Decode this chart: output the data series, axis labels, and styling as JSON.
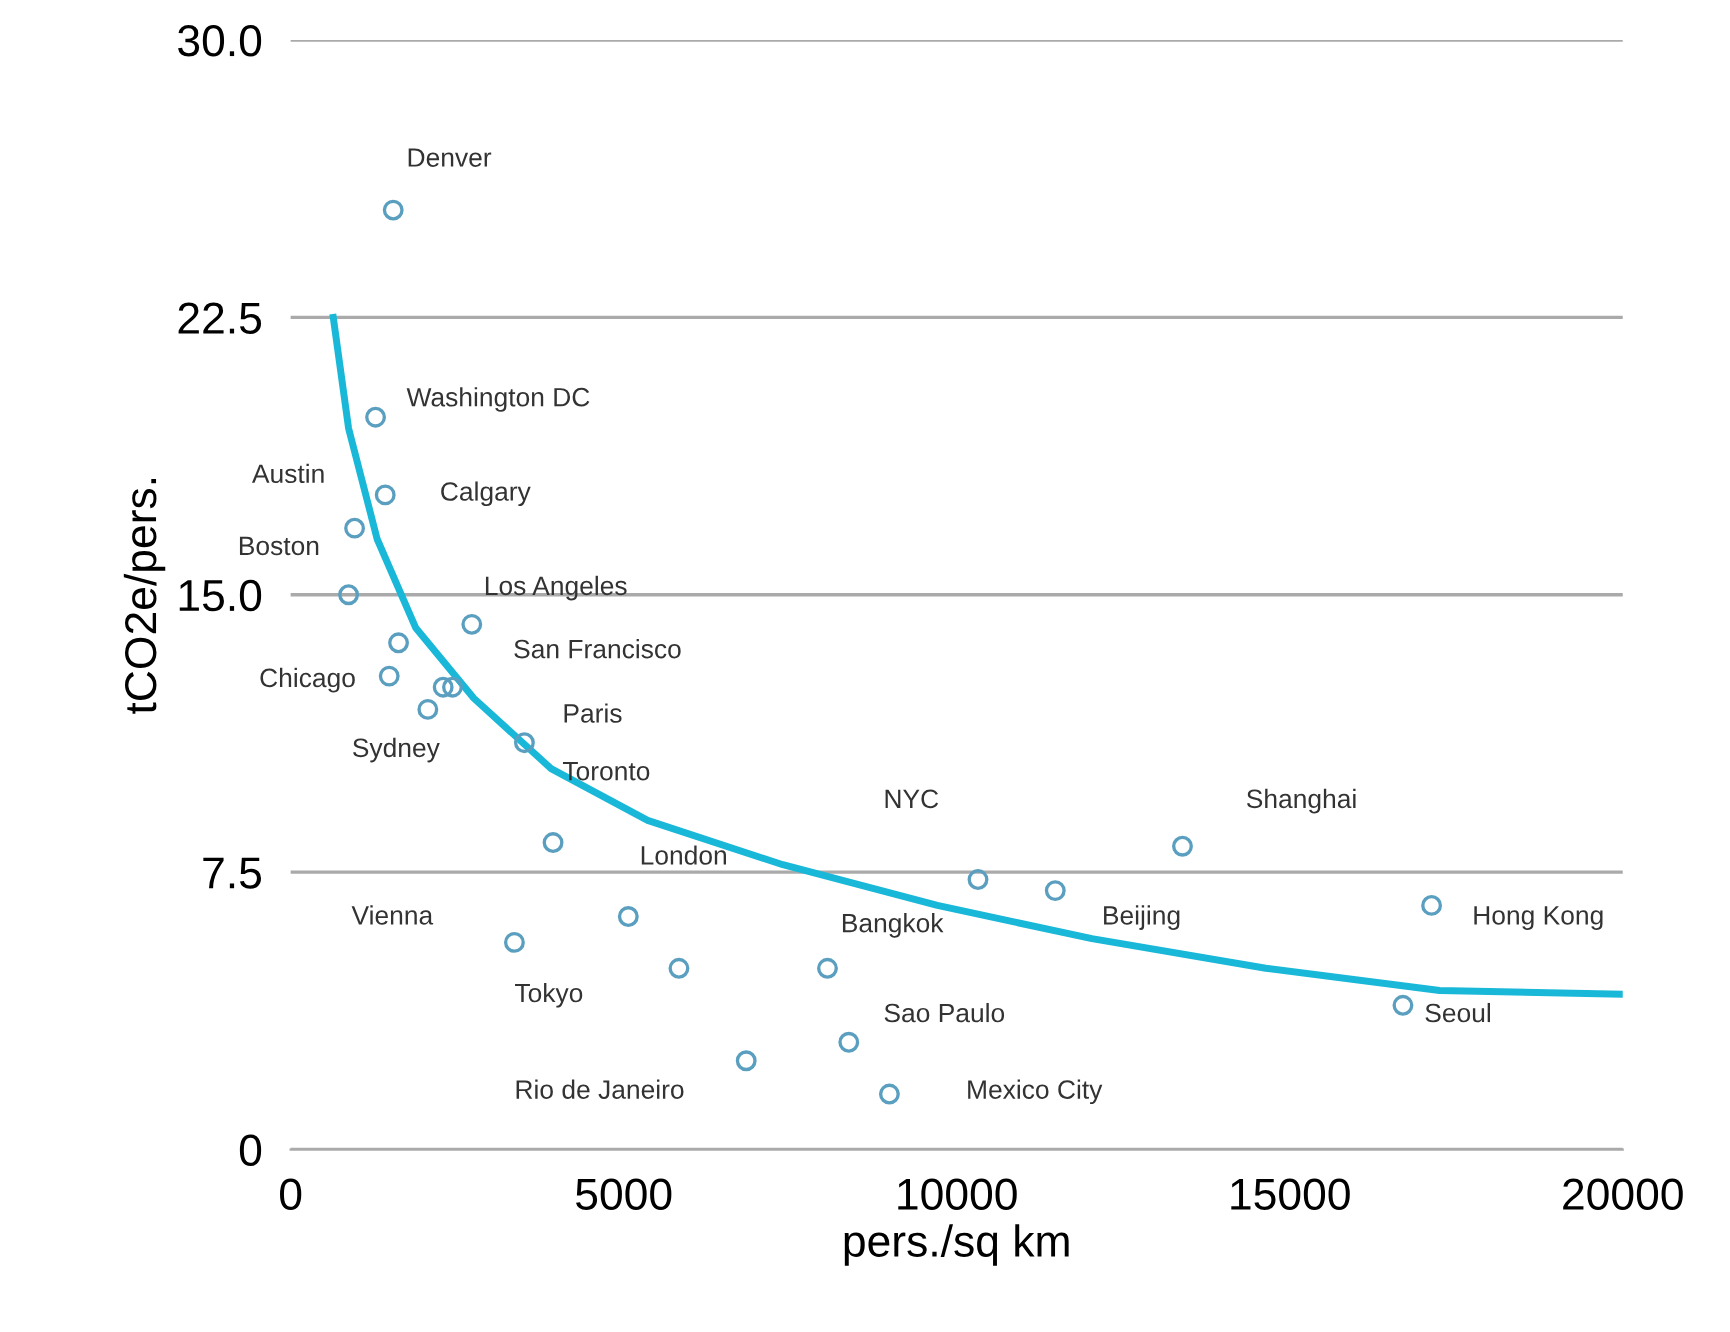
{
  "chart_data": {
    "type": "scatter",
    "xlabel": "pers./sq km",
    "ylabel": "tCO2e/pers.",
    "xlim": [
      0,
      20000
    ],
    "ylim": [
      0,
      30
    ],
    "xticks": [
      0,
      5000,
      10000,
      15000,
      20000
    ],
    "yticks": [
      {
        "value": 0,
        "label": "0"
      },
      {
        "value": 7.5,
        "label": "7.5"
      },
      {
        "value": 15,
        "label": "15.0"
      },
      {
        "value": 22.5,
        "label": "22.5"
      },
      {
        "value": 30,
        "label": "30.0"
      }
    ],
    "grid": "y",
    "marker": "circle",
    "series": [
      {
        "color": "#5a9fbf",
        "x": [
          1540,
          1275,
          1420,
          960,
          870,
          2720,
          1620,
          1480,
          2290,
          2430,
          2060,
          3510,
          3940,
          10320,
          11480,
          13390,
          17130,
          16700,
          3360,
          5070,
          5830,
          8060,
          8380,
          6840,
          8990
        ],
        "values": [
          25.4,
          19.8,
          17.7,
          16.8,
          15.0,
          14.2,
          13.7,
          12.8,
          12.5,
          12.5,
          11.9,
          11.0,
          8.3,
          7.3,
          7.0,
          8.2,
          6.6,
          3.9,
          5.6,
          6.3,
          4.9,
          4.9,
          2.9,
          2.4,
          1.5
        ]
      },
      {
        "type": "line",
        "color": "#1ab8d8",
        "marker": "none",
        "x": [
          640,
          870,
          1300,
          1880,
          2750,
          3910,
          5360,
          7390,
          9710,
          12030,
          14640,
          17250,
          20000
        ],
        "values": [
          22.5,
          19.5,
          16.5,
          14.1,
          12.2,
          10.3,
          8.9,
          7.7,
          6.6,
          5.7,
          4.9,
          4.3,
          4.2
        ]
      }
    ],
    "annotations": [
      "Denver",
      "Washington DC",
      "Austin",
      "Boston",
      "Chicago",
      "Sydney",
      "Vienna",
      "Calgary",
      "Los Angeles",
      "San Francisco",
      "Paris",
      "Toronto",
      "London",
      "NYC",
      "Shanghai",
      "Bangkok",
      "Beijing",
      "Hong Kong",
      "Seoul",
      "Tokyo",
      "Sao Paulo",
      "Rio de Janeiro",
      "Mexico City"
    ]
  }
}
